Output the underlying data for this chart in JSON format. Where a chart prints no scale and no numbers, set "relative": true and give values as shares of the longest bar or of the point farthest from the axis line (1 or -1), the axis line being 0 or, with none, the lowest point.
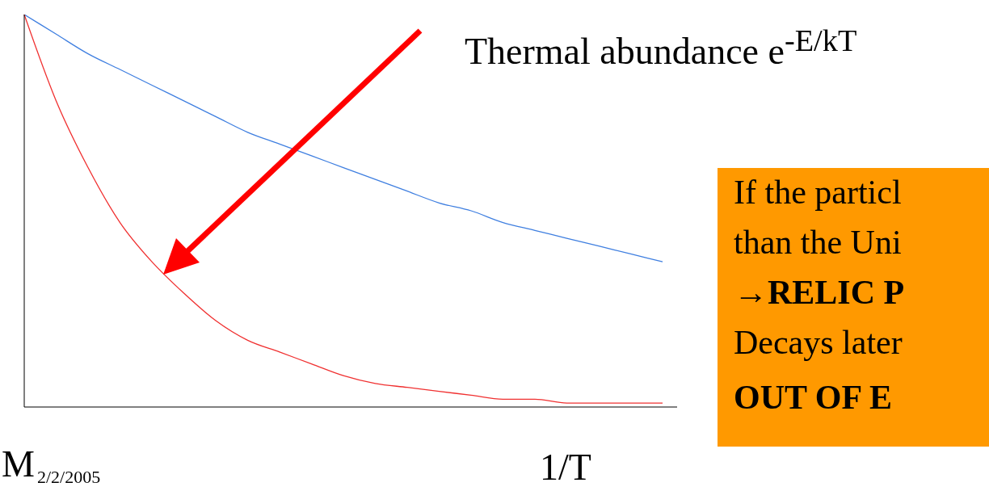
{
  "chart_data": {
    "type": "line",
    "relative": true,
    "marker": "none",
    "xlabel": "1/T",
    "categories": [
      null,
      null,
      null,
      null,
      null,
      null,
      null,
      null,
      null,
      null,
      null,
      null,
      null,
      null,
      null,
      null,
      null,
      null,
      null,
      null,
      null
    ],
    "series": [
      {
        "color": "#3f7fe0",
        "values": [
          1,
          0.95,
          0.9,
          0.86,
          0.82,
          0.78,
          0.74,
          0.7,
          0.67,
          0.64,
          0.61,
          0.58,
          0.55,
          0.52,
          0.5,
          0.47,
          0.45,
          0.43,
          0.41,
          0.39,
          0.37
        ]
      },
      {
        "color": "#f03030",
        "values": [
          1,
          0.78,
          0.61,
          0.47,
          0.37,
          0.29,
          0.22,
          0.17,
          0.14,
          0.11,
          0.08,
          0.06,
          0.05,
          0.04,
          0.03,
          0.02,
          0.02,
          0.01,
          0.01,
          0.01,
          0.01
        ]
      }
    ],
    "annotations": [
      "Thermal abundance e$^{-E/kT}$",
      "If the particl",
      "than the Uni",
      "→RELIC P",
      "Decays later",
      "OUT OF E",
      "M",
      "2/2/2005"
    ]
  }
}
